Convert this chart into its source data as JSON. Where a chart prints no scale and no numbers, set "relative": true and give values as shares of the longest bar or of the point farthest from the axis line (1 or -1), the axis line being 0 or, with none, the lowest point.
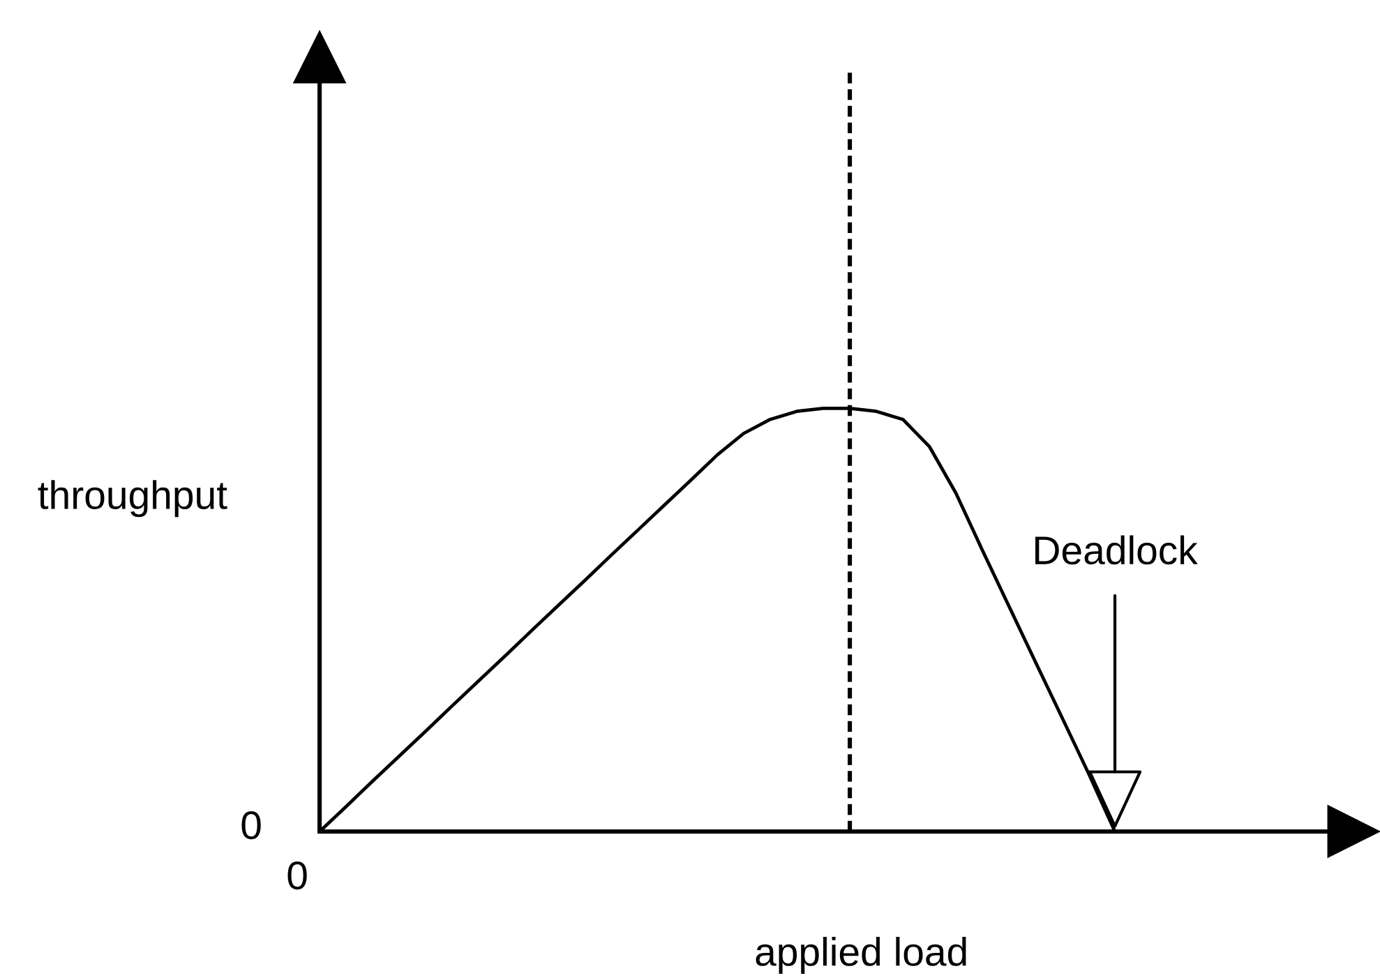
{
  "chart_data": {
    "type": "line",
    "relative": true,
    "xlabel": "applied load",
    "ylabel": "throughput",
    "categories": [
      null,
      null,
      null,
      null,
      null,
      null,
      null,
      null,
      null,
      null,
      null,
      null,
      null,
      null,
      null,
      null,
      null,
      null,
      null,
      null,
      null,
      null,
      null,
      null,
      null,
      null,
      null,
      null,
      null,
      null,
      null
    ],
    "series": [
      {
        "color": "#000000",
        "values": [
          0,
          0.059,
          0.119,
          0.178,
          0.237,
          0.297,
          0.356,
          0.415,
          0.475,
          0.534,
          0.593,
          0.653,
          0.712,
          0.771,
          0.83,
          0.89,
          0.941,
          0.974,
          0.993,
          1.0,
          1.0,
          0.993,
          0.974,
          0.91,
          0.8,
          0.665,
          0.533,
          0.401,
          0.27,
          0.138,
          0
        ]
      }
    ],
    "ref_lines": [
      {
        "axis": "x",
        "color": "#000000",
        "line_style": "dashed"
      }
    ],
    "annotations": [
      "0",
      "0",
      {
        "text": "Deadlock",
        "y": 0
      }
    ]
  }
}
